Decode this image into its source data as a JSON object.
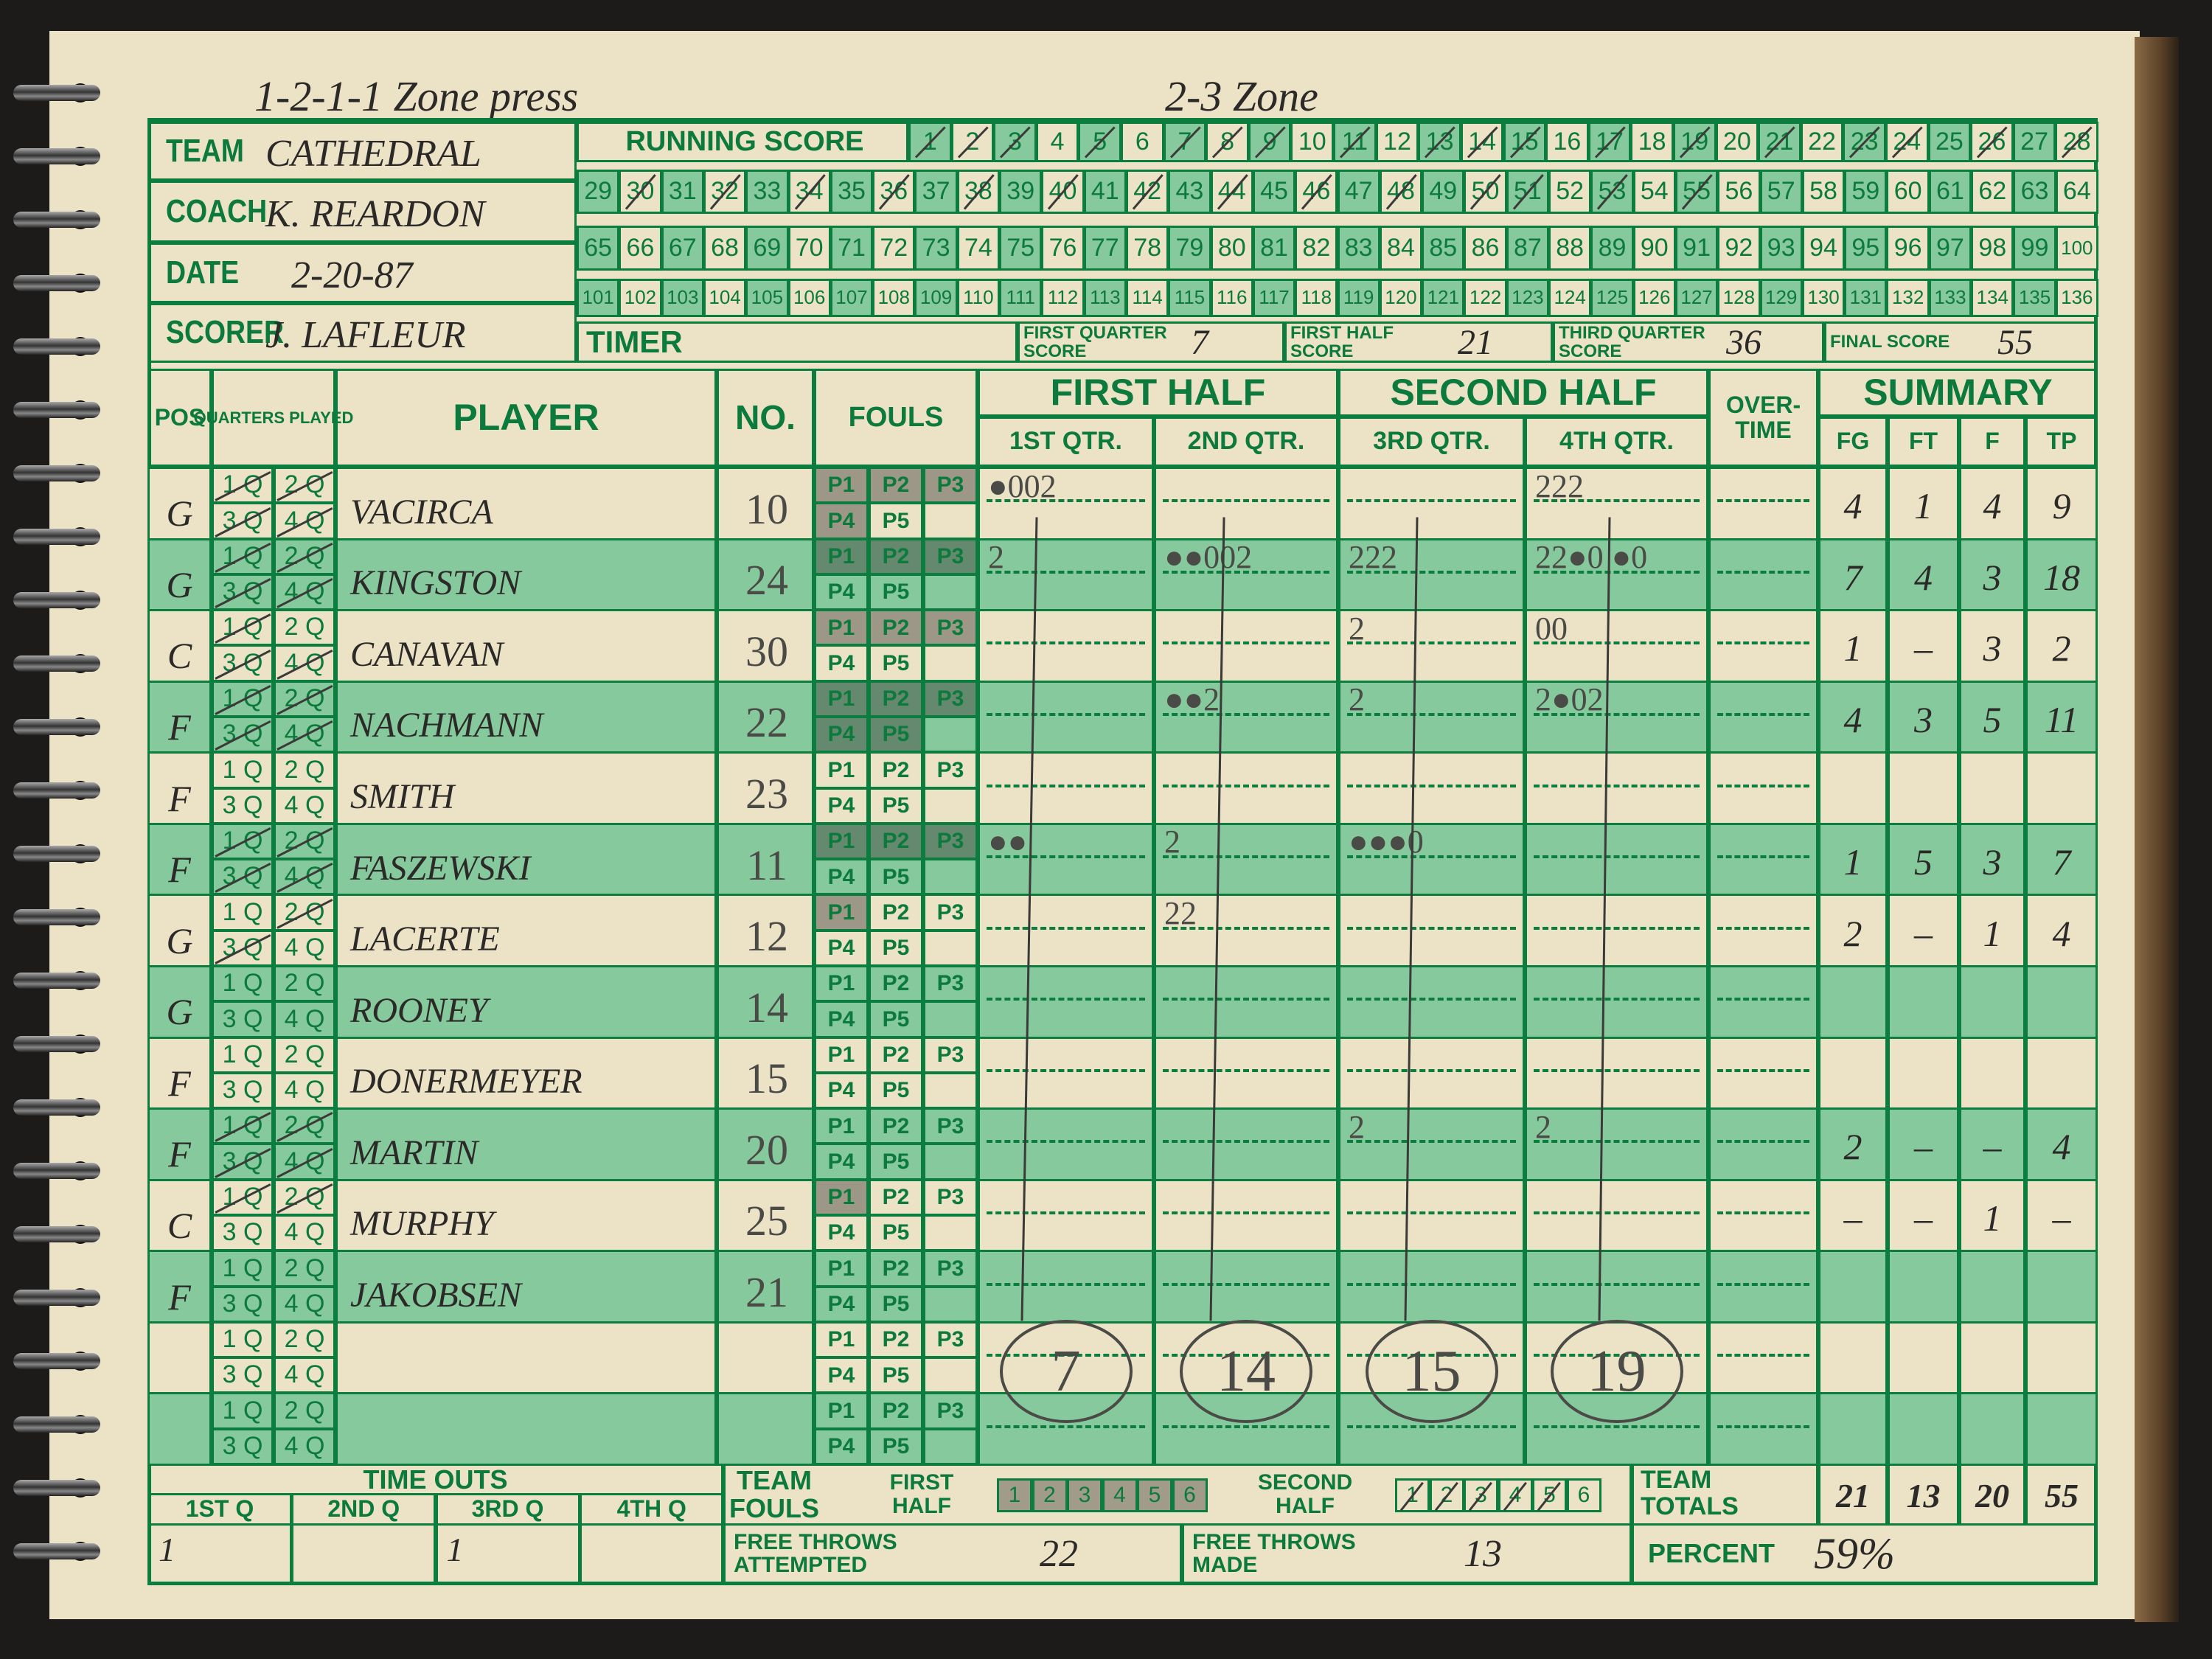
{
  "annotations": [
    "1-2-1-1 Zone press",
    "2-3 Zone"
  ],
  "header": {
    "team_label": "TEAM",
    "team": "CATHEDRAL",
    "coach_label": "COACH",
    "coach": "K. REARDON",
    "date_label": "DATE",
    "date": "2-20-87",
    "scorer_label": "SCORER",
    "scorer": "J. LAFLEUR",
    "running_score_label": "RUNNING SCORE",
    "timer_label": "TIMER"
  },
  "running_score": {
    "rows": [
      {
        "from": 1,
        "to": 28
      },
      {
        "from": 29,
        "to": 64
      },
      {
        "from": 65,
        "to": 100
      },
      {
        "from": 101,
        "to": 136
      }
    ],
    "marked": [
      1,
      2,
      3,
      5,
      7,
      8,
      9,
      11,
      13,
      14,
      15,
      17,
      19,
      21,
      23,
      24,
      26,
      28,
      30,
      32,
      34,
      36,
      38,
      40,
      42,
      44,
      46,
      48,
      50,
      51,
      53,
      55
    ]
  },
  "period_scores": [
    {
      "label": "FIRST QUARTER SCORE",
      "value": "7"
    },
    {
      "label": "FIRST HALF SCORE",
      "value": "21"
    },
    {
      "label": "THIRD QUARTER SCORE",
      "value": "36"
    },
    {
      "label": "FINAL SCORE",
      "value": "55"
    }
  ],
  "columns": {
    "pos": "POS",
    "quarters_played": "QUARTERS PLAYED",
    "player": "PLAYER",
    "no": "NO.",
    "fouls": "FOULS",
    "first_half": "FIRST HALF",
    "second_half": "SECOND HALF",
    "q1": "1ST QTR.",
    "q2": "2ND QTR.",
    "q3": "3RD QTR.",
    "q4": "4TH QTR.",
    "overtime": "OVER-TIME",
    "summary": "SUMMARY",
    "fg": "FG",
    "ft": "FT",
    "f": "F",
    "tp": "TP"
  },
  "quarter_labels": [
    "1 Q",
    "2 Q",
    "3 Q",
    "4 Q"
  ],
  "foul_labels": [
    "P1",
    "P2",
    "P3",
    "P4",
    "P5"
  ],
  "players": [
    {
      "pos": "G",
      "name": "VACIRCA",
      "no": "10",
      "played": [
        1,
        2,
        3,
        4
      ],
      "fouls": 4,
      "q": [
        "●002",
        "",
        "",
        "222"
      ],
      "fg": "4",
      "ft": "1",
      "f": "4",
      "tp": "9"
    },
    {
      "pos": "G",
      "name": "KINGSTON",
      "no": "24",
      "played": [
        1,
        2,
        3,
        4
      ],
      "fouls": 3,
      "q": [
        "2",
        "●●002",
        "222",
        "22●0 ●0"
      ],
      "fg": "7",
      "ft": "4",
      "f": "3",
      "tp": "18"
    },
    {
      "pos": "C",
      "name": "CANAVAN",
      "no": "30",
      "played": [
        1,
        3,
        4
      ],
      "fouls": 3,
      "q": [
        "",
        "",
        "2",
        "00"
      ],
      "fg": "1",
      "ft": "–",
      "f": "3",
      "tp": "2"
    },
    {
      "pos": "F",
      "name": "NACHMANN",
      "no": "22",
      "played": [
        1,
        2,
        3,
        4
      ],
      "fouls": 5,
      "q": [
        "",
        "●●2",
        "2",
        "2●02"
      ],
      "fg": "4",
      "ft": "3",
      "f": "5",
      "tp": "11"
    },
    {
      "pos": "F",
      "name": "SMITH",
      "no": "23",
      "played": [],
      "fouls": 0,
      "q": [
        "",
        "",
        "",
        ""
      ],
      "fg": "",
      "ft": "",
      "f": "",
      "tp": ""
    },
    {
      "pos": "F",
      "name": "FASZEWSKI",
      "no": "11",
      "played": [
        1,
        2,
        3,
        4
      ],
      "fouls": 3,
      "q": [
        "●●",
        "2",
        "●●●0",
        ""
      ],
      "fg": "1",
      "ft": "5",
      "f": "3",
      "tp": "7"
    },
    {
      "pos": "G",
      "name": "LACERTE",
      "no": "12",
      "played": [
        2,
        3
      ],
      "fouls": 1,
      "q": [
        "",
        "22",
        "",
        ""
      ],
      "fg": "2",
      "ft": "–",
      "f": "1",
      "tp": "4"
    },
    {
      "pos": "G",
      "name": "ROONEY",
      "no": "14",
      "played": [],
      "fouls": 0,
      "q": [
        "",
        "",
        "",
        ""
      ],
      "fg": "",
      "ft": "",
      "f": "",
      "tp": ""
    },
    {
      "pos": "F",
      "name": "DONERMEYER",
      "no": "15",
      "played": [],
      "fouls": 0,
      "q": [
        "",
        "",
        "",
        ""
      ],
      "fg": "",
      "ft": "",
      "f": "",
      "tp": ""
    },
    {
      "pos": "F",
      "name": "MARTIN",
      "no": "20",
      "played": [
        1,
        2,
        3,
        4
      ],
      "fouls": 0,
      "q": [
        "",
        "",
        "2",
        "2"
      ],
      "fg": "2",
      "ft": "–",
      "f": "–",
      "tp": "4"
    },
    {
      "pos": "C",
      "name": "MURPHY",
      "no": "25",
      "played": [
        1,
        2
      ],
      "fouls": 1,
      "q": [
        "",
        "",
        "",
        ""
      ],
      "fg": "–",
      "ft": "–",
      "f": "1",
      "tp": "–"
    },
    {
      "pos": "F",
      "name": "JAKOBSEN",
      "no": "21",
      "played": [],
      "fouls": 0,
      "q": [
        "",
        "",
        "",
        ""
      ],
      "fg": "",
      "ft": "",
      "f": "",
      "tp": ""
    },
    {
      "pos": "",
      "name": "",
      "no": "",
      "played": [],
      "fouls": 0,
      "q": [
        "",
        "",
        "",
        ""
      ],
      "fg": "",
      "ft": "",
      "f": "",
      "tp": ""
    },
    {
      "pos": "",
      "name": "",
      "no": "",
      "played": [],
      "fouls": 0,
      "q": [
        "",
        "",
        "",
        ""
      ],
      "fg": "",
      "ft": "",
      "f": "",
      "tp": ""
    }
  ],
  "quarter_totals": [
    "7",
    "14",
    "15",
    "19"
  ],
  "timeouts": {
    "label": "TIME OUTS",
    "quarters": [
      "1ST Q",
      "2ND Q",
      "3RD Q",
      "4TH Q"
    ],
    "values": [
      "1",
      "",
      "1",
      ""
    ]
  },
  "team_fouls": {
    "label": "TEAM FOULS",
    "first_half_label": "FIRST HALF",
    "second_half_label": "SECOND HALF",
    "boxes": [
      "1",
      "2",
      "3",
      "4",
      "5",
      "6"
    ],
    "first_half_count": 6,
    "second_half_count": 5
  },
  "free_throws": {
    "attempted_label": "FREE THROWS ATTEMPTED",
    "attempted": "22",
    "made_label": "FREE THROWS MADE",
    "made": "13"
  },
  "team_totals": {
    "label": "TEAM TOTALS",
    "fg": "21",
    "ft": "13",
    "f": "20",
    "tp": "55"
  },
  "percent": {
    "label": "PERCENT",
    "value": "59%"
  },
  "colors": {
    "ink_green": "#0b7d3e",
    "shade_green": "#86c99c",
    "paper": "#ece2c6"
  }
}
